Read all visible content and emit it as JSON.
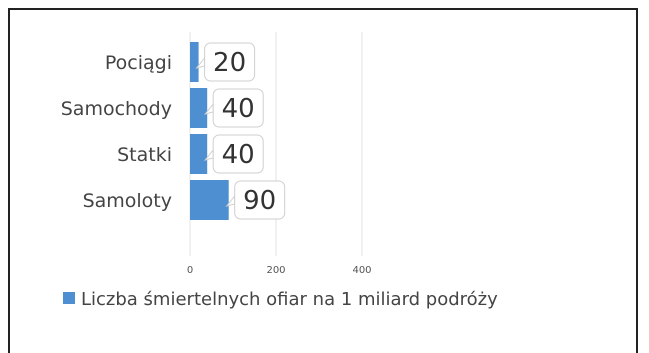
{
  "chart_data": {
    "type": "bar",
    "orientation": "horizontal",
    "categories": [
      "Pociągi",
      "Samochody",
      "Statki",
      "Samoloty"
    ],
    "series": [
      {
        "name": "Liczba śmiertelnych ofiar na 1 miliard podróży",
        "values": [
          20,
          40,
          40,
          90
        ],
        "data_labels": [
          "20",
          "40",
          "40",
          "90"
        ],
        "color": "#4e8fd1"
      }
    ],
    "x_ticks": [
      "0",
      "200",
      "400"
    ],
    "xlim": [
      0,
      400
    ],
    "grid": true,
    "legend_position": "bottom-left",
    "title": "",
    "xlabel": "",
    "ylabel": ""
  }
}
